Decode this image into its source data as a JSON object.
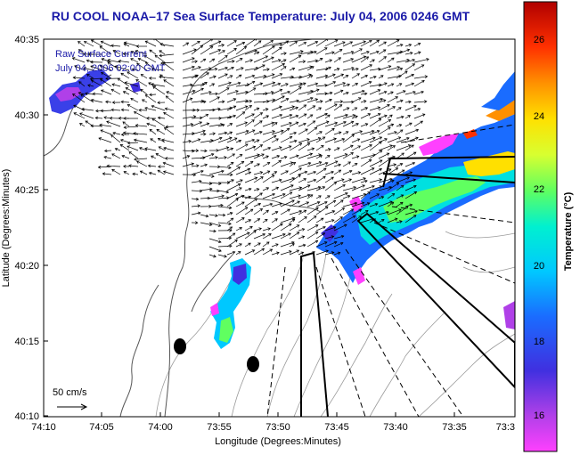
{
  "title": "RU COOL  NOAA–17  Sea Surface Temperature:  July 04, 2006 0246 GMT",
  "annotation": {
    "line1": "Raw Surface Current",
    "line2": "July 04, 2006 02:00 GMT"
  },
  "scale_label": "50 cm/s",
  "x_axis": {
    "label": "Longitude (Degrees:Minutes)",
    "ticks": [
      "74:10",
      "74:05",
      "74:00",
      "73:55",
      "73:50",
      "73:45",
      "73:40",
      "73:35",
      "73:3"
    ]
  },
  "y_axis": {
    "label": "Latitude (Degrees:Minutes)",
    "ticks": [
      "40:35",
      "40:30",
      "40:25",
      "40:20",
      "40:15",
      "40:10"
    ]
  },
  "colorbar": {
    "label": "Temperature (°C)",
    "ticks": [
      "26",
      "24",
      "22",
      "20",
      "18",
      "16"
    ],
    "range": [
      15,
      27
    ]
  },
  "colors": {
    "title": "#1a1aa8",
    "coast": "#555555",
    "vectors": "#000000"
  }
}
